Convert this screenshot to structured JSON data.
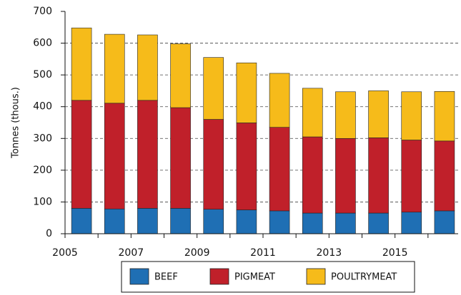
{
  "chart_data": {
    "type": "stacked_bar",
    "y_label": "Tonnes (thous.)",
    "categories": [
      "2005",
      null,
      "2007",
      null,
      "2009",
      null,
      "2011",
      null,
      "2013",
      null,
      "2015",
      null
    ],
    "series": [
      {
        "name": "BEEF",
        "color": "#1f6fb4",
        "values": [
          80,
          78,
          80,
          80,
          77,
          75,
          72,
          65,
          65,
          65,
          68,
          72
        ]
      },
      {
        "name": "PIGMEAT",
        "color": "#c0202a",
        "values": [
          340,
          333,
          340,
          317,
          283,
          274,
          263,
          240,
          235,
          237,
          227,
          220
        ]
      },
      {
        "name": "POULTRYMEAT",
        "color": "#f6bb1a",
        "values": [
          228,
          217,
          206,
          201,
          195,
          189,
          170,
          153,
          147,
          148,
          152,
          156
        ]
      }
    ],
    "ylim": [
      0,
      700
    ],
    "yticks": [
      0,
      100,
      200,
      300,
      400,
      500,
      600,
      700
    ],
    "grid": true,
    "legend": "bottom"
  }
}
